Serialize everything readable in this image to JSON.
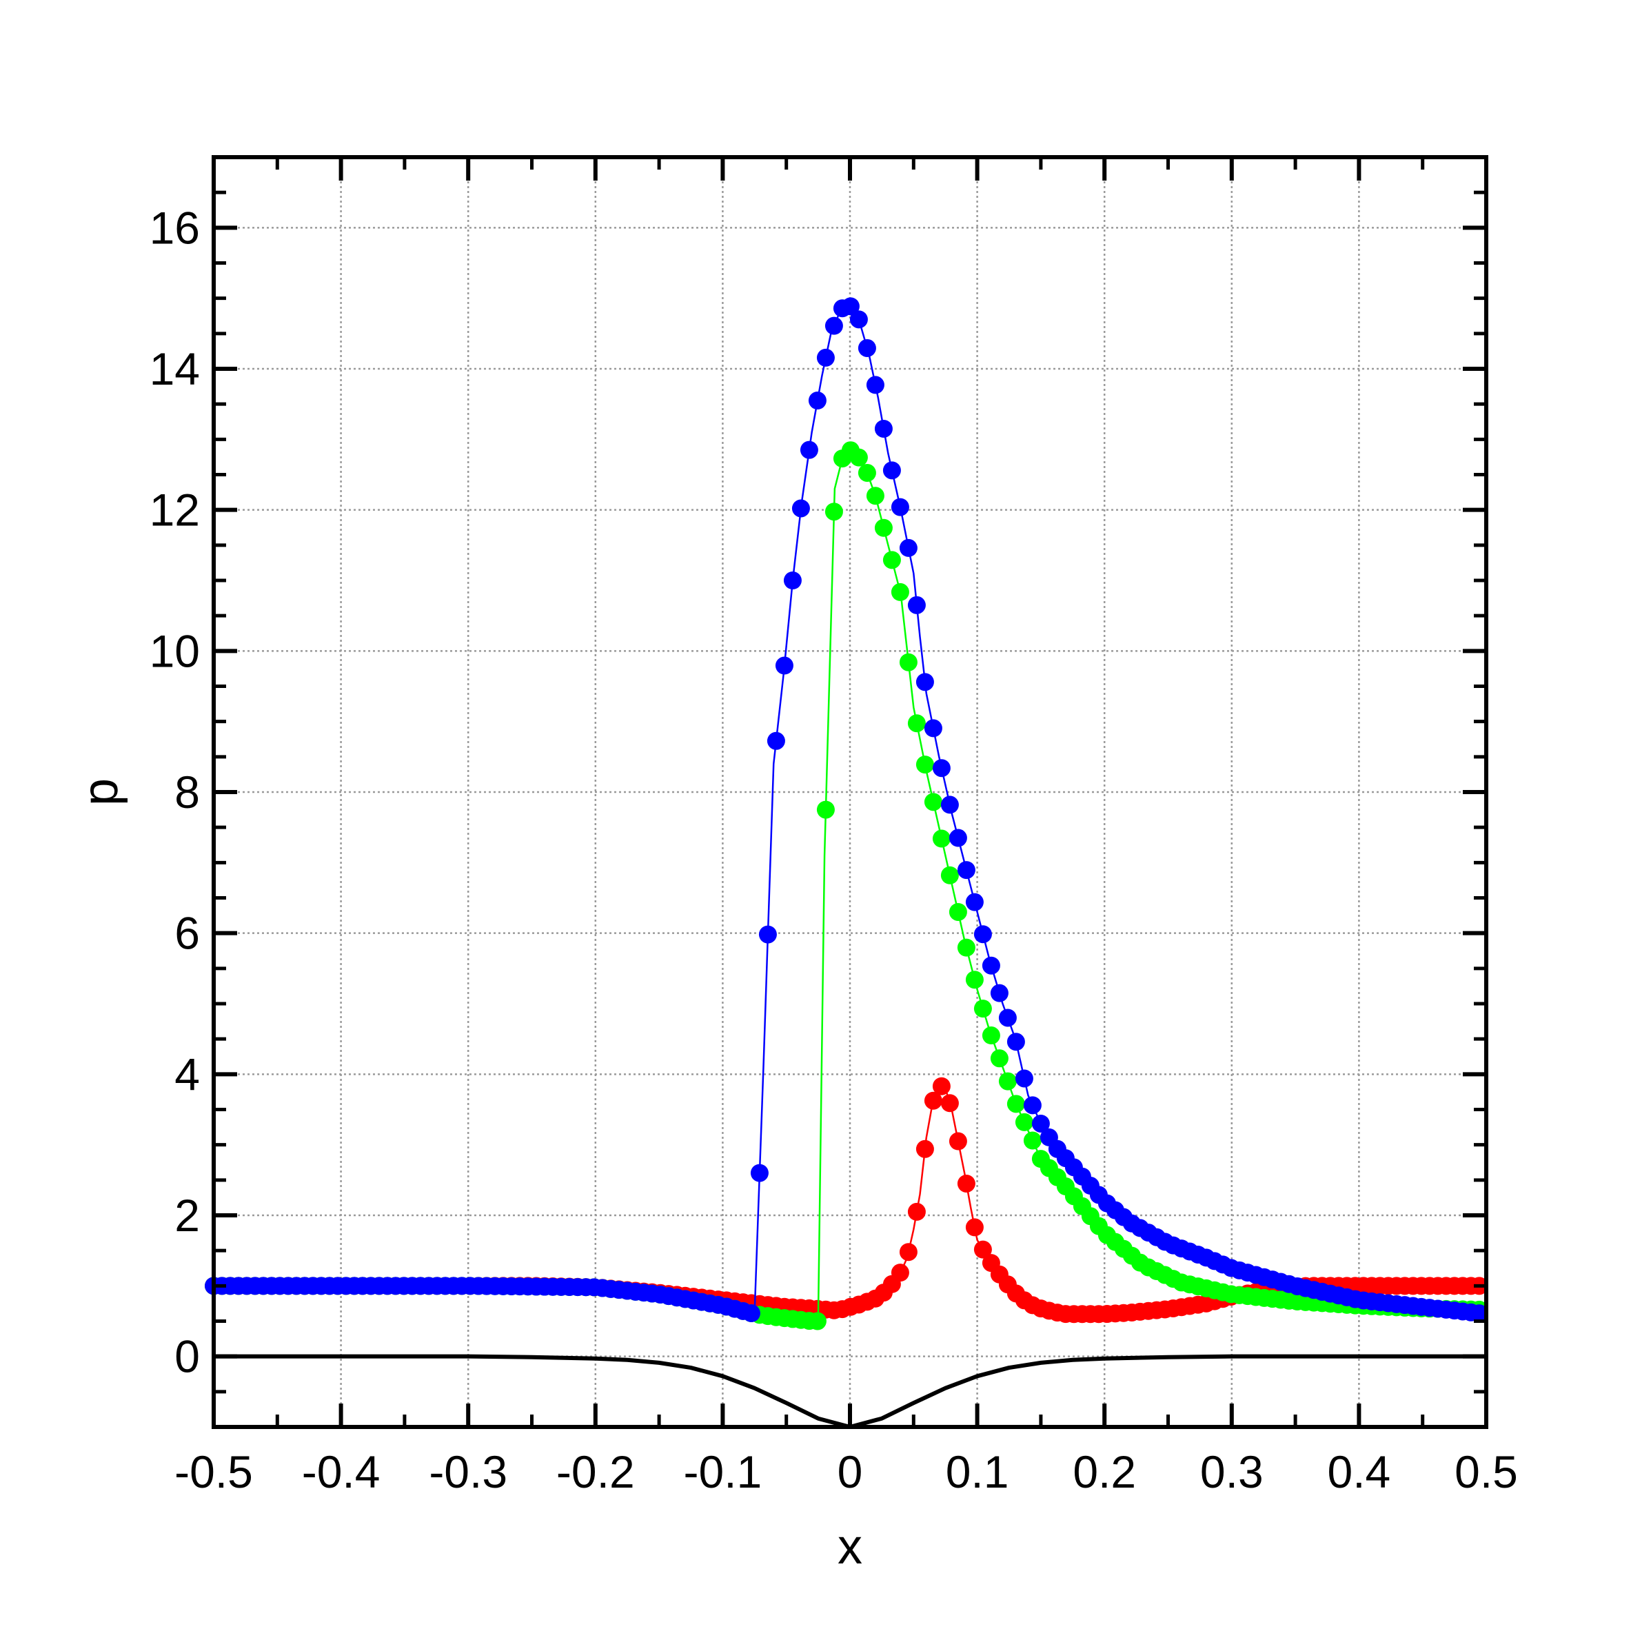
{
  "chart_data": {
    "type": "line",
    "title": "",
    "xlabel": "x",
    "ylabel": "p",
    "xlim": [
      -0.5,
      0.5
    ],
    "ylim": [
      -1,
      17
    ],
    "xticks": [
      -0.5,
      -0.4,
      -0.3,
      -0.2,
      -0.1,
      0,
      0.1,
      0.2,
      0.3,
      0.4,
      0.5
    ],
    "xtick_labels": [
      "-0.5",
      "-0.4",
      "-0.3",
      "-0.2",
      "-0.1",
      "0",
      "0.1",
      "0.2",
      "0.3",
      "0.4",
      "0.5"
    ],
    "yticks": [
      0,
      2,
      4,
      6,
      8,
      10,
      12,
      14,
      16
    ],
    "ytick_labels": [
      "0",
      "2",
      "4",
      "6",
      "8",
      "10",
      "12",
      "14",
      "16"
    ],
    "grid": true,
    "legend": "none",
    "bottom_curve": {
      "color": "#000000",
      "x": [
        -0.5,
        -0.3,
        -0.25,
        -0.2,
        -0.175,
        -0.15,
        -0.125,
        -0.1,
        -0.075,
        -0.05,
        -0.025,
        0,
        0.025,
        0.05,
        0.075,
        0.1,
        0.125,
        0.15,
        0.175,
        0.2,
        0.25,
        0.3,
        0.5
      ],
      "y": [
        0,
        0,
        -0.01,
        -0.03,
        -0.05,
        -0.09,
        -0.16,
        -0.28,
        -0.45,
        -0.66,
        -0.88,
        -1.0,
        -0.88,
        -0.66,
        -0.45,
        -0.28,
        -0.16,
        -0.09,
        -0.05,
        -0.03,
        -0.01,
        0,
        0
      ]
    },
    "series": [
      {
        "color": "#ff0000",
        "x": [
          -0.5,
          -0.45,
          -0.4,
          -0.35,
          -0.3,
          -0.25,
          -0.2,
          -0.15,
          -0.1,
          -0.05,
          -0.03,
          -0.01,
          0,
          0.01,
          0.02,
          0.03,
          0.04,
          0.045,
          0.05,
          0.055,
          0.06,
          0.065,
          0.07,
          0.075,
          0.08,
          0.085,
          0.09,
          0.095,
          0.1,
          0.11,
          0.12,
          0.13,
          0.14,
          0.15,
          0.16,
          0.17,
          0.18,
          0.2,
          0.22,
          0.25,
          0.28,
          0.3,
          0.33,
          0.36,
          0.4,
          0.45,
          0.5
        ],
        "y": [
          1.0,
          1.0,
          1.0,
          1.0,
          1.0,
          1.0,
          0.98,
          0.9,
          0.8,
          0.7,
          0.68,
          0.65,
          0.7,
          0.75,
          0.82,
          0.95,
          1.2,
          1.4,
          1.8,
          2.3,
          3.1,
          3.6,
          3.85,
          3.8,
          3.5,
          3.05,
          2.6,
          2.1,
          1.65,
          1.35,
          1.1,
          0.9,
          0.75,
          0.68,
          0.63,
          0.6,
          0.6,
          0.6,
          0.62,
          0.67,
          0.75,
          0.85,
          0.95,
          1.0,
          1.0,
          1.0,
          1.0
        ]
      },
      {
        "color": "#00ff00",
        "x": [
          -0.5,
          -0.4,
          -0.3,
          -0.2,
          -0.15,
          -0.1,
          -0.075,
          -0.06,
          -0.05,
          -0.04,
          -0.03,
          -0.025,
          -0.02,
          -0.012,
          -0.005,
          0,
          0.005,
          0.012,
          0.02,
          0.03,
          0.04,
          0.05,
          0.06,
          0.07,
          0.08,
          0.09,
          0.1,
          0.11,
          0.12,
          0.13,
          0.14,
          0.15,
          0.17,
          0.2,
          0.23,
          0.26,
          0.3,
          0.35,
          0.4,
          0.45,
          0.5
        ],
        "y": [
          1.0,
          1.0,
          1.0,
          0.98,
          0.88,
          0.72,
          0.6,
          0.56,
          0.54,
          0.52,
          0.5,
          0.5,
          7.1,
          12.3,
          12.8,
          12.85,
          12.8,
          12.6,
          12.2,
          11.5,
          10.8,
          9.2,
          8.3,
          7.5,
          6.7,
          5.9,
          5.2,
          4.6,
          4.1,
          3.6,
          3.2,
          2.8,
          2.4,
          1.75,
          1.3,
          1.05,
          0.88,
          0.78,
          0.72,
          0.68,
          0.66
        ]
      },
      {
        "color": "#0000ff",
        "x": [
          -0.5,
          -0.4,
          -0.3,
          -0.2,
          -0.15,
          -0.1,
          -0.075,
          -0.068,
          -0.06,
          -0.052,
          -0.045,
          -0.038,
          -0.03,
          -0.022,
          -0.015,
          -0.007,
          0,
          0.007,
          0.015,
          0.022,
          0.03,
          0.04,
          0.05,
          0.055,
          0.06,
          0.07,
          0.08,
          0.09,
          0.1,
          0.11,
          0.12,
          0.13,
          0.14,
          0.15,
          0.16,
          0.17,
          0.18,
          0.2,
          0.22,
          0.25,
          0.28,
          0.3,
          0.35,
          0.4,
          0.45,
          0.5
        ],
        "y": [
          1.0,
          1.0,
          1.0,
          0.98,
          0.88,
          0.72,
          0.6,
          4.1,
          8.4,
          9.7,
          11.0,
          12.1,
          13.1,
          13.9,
          14.5,
          14.85,
          14.9,
          14.7,
          14.2,
          13.6,
          12.8,
          12.0,
          11.1,
          10.2,
          9.4,
          8.5,
          7.7,
          7.0,
          6.3,
          5.6,
          5.0,
          4.5,
          3.7,
          3.3,
          3.0,
          2.8,
          2.6,
          2.2,
          1.9,
          1.6,
          1.4,
          1.25,
          1.0,
          0.8,
          0.7,
          0.6
        ]
      }
    ]
  }
}
